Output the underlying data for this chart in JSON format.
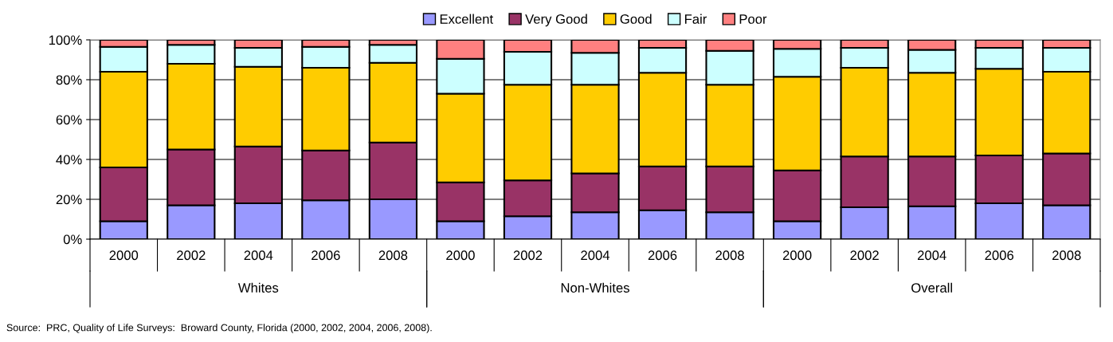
{
  "chart_data": {
    "type": "bar",
    "stacked": true,
    "categories": [
      "2000",
      "2002",
      "2004",
      "2006",
      "2008",
      "2000",
      "2002",
      "2004",
      "2006",
      "2008",
      "2000",
      "2002",
      "2004",
      "2006",
      "2008"
    ],
    "series": [
      {
        "name": "Excellent",
        "color": "#9999ff",
        "values": [
          9,
          17,
          18,
          19.5,
          20,
          9,
          11.5,
          13.5,
          14.5,
          13.5,
          9,
          16,
          16.5,
          18,
          17
        ]
      },
      {
        "name": "Very Good",
        "color": "#993366",
        "values": [
          27,
          28,
          28.5,
          25,
          28.5,
          19.5,
          18,
          19.5,
          22,
          23,
          25.5,
          25.5,
          25,
          24,
          26
        ]
      },
      {
        "name": "Good",
        "color": "#ffcc00",
        "values": [
          48,
          43,
          40,
          41.5,
          40,
          44.5,
          48,
          44.5,
          47,
          41,
          47,
          44.5,
          42,
          43.5,
          41
        ]
      },
      {
        "name": "Fair",
        "color": "#ccffff",
        "values": [
          12.5,
          9.5,
          9.5,
          10.5,
          9,
          17.5,
          16.5,
          16,
          12.5,
          17,
          14,
          10,
          11.5,
          10.5,
          12
        ]
      },
      {
        "name": "Poor",
        "color": "#ff8080",
        "values": [
          3.5,
          2.5,
          4,
          3.5,
          2.5,
          9.5,
          6,
          6.5,
          4,
          5.5,
          4.5,
          4,
          5,
          4,
          4
        ]
      }
    ],
    "ylim": [
      0,
      100
    ],
    "yticks": [
      {
        "value": 0,
        "label": "0%"
      },
      {
        "value": 20,
        "label": "20%"
      },
      {
        "value": 40,
        "label": "40%"
      },
      {
        "value": 60,
        "label": "60%"
      },
      {
        "value": 80,
        "label": "80%"
      },
      {
        "value": 100,
        "label": "100%"
      }
    ],
    "grid": "y",
    "legend": "top",
    "annotations": [
      "Whites",
      "Non-Whites",
      "Overall",
      "Source:  PRC, Quality of Life Surveys:  Broward County, Florida (2000, 2002, 2004, 2006, 2008)."
    ]
  }
}
